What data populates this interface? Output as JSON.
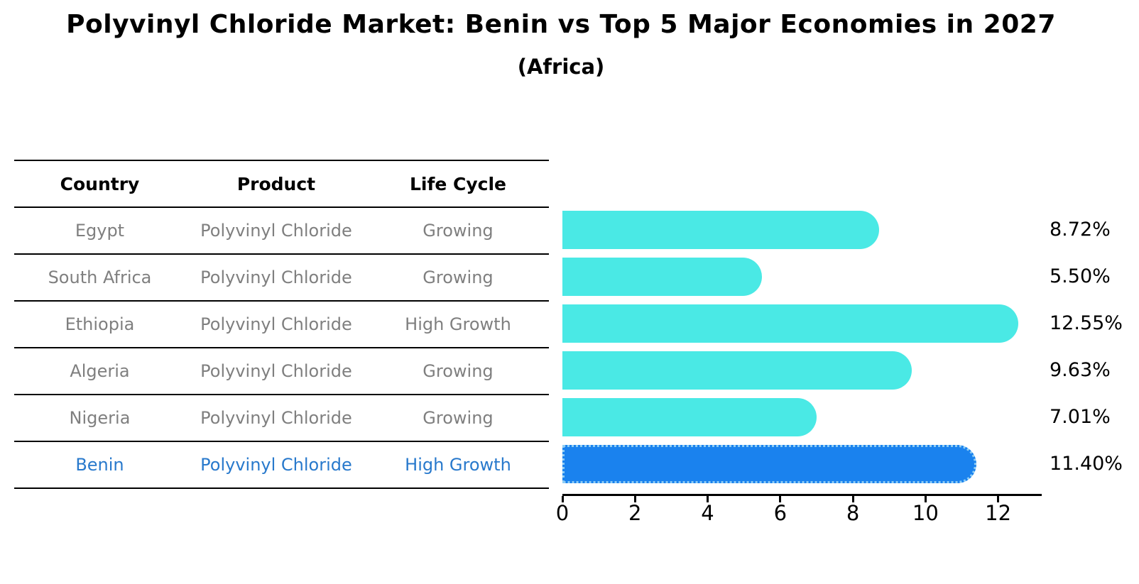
{
  "chart_data": {
    "type": "bar",
    "orientation": "horizontal",
    "title": "Polyvinyl Chloride Market: Benin vs Top 5 Major Economies in 2027",
    "subtitle": "(Africa)",
    "categories": [
      "Egypt",
      "South Africa",
      "Ethiopia",
      "Algeria",
      "Nigeria",
      "Benin"
    ],
    "values": [
      8.72,
      5.5,
      12.55,
      9.63,
      7.01,
      11.4
    ],
    "value_labels": [
      "8.72%",
      "5.50%",
      "12.55%",
      "9.63%",
      "7.01%",
      "11.40%"
    ],
    "x_ticks": [
      "0",
      "2",
      "4",
      "6",
      "8",
      "10",
      "12"
    ],
    "x_tick_values": [
      0,
      2,
      4,
      6,
      8,
      10,
      12
    ],
    "xlim": [
      0,
      13.2
    ],
    "grid": false,
    "legend": "none",
    "bar_color": "#4ae9e5",
    "highlight_index": 5,
    "highlight_color": "#1a82ee",
    "highlight_edge_color": "#8ecdf5"
  },
  "table": {
    "headers": [
      "Country",
      "Product",
      "Life Cycle"
    ],
    "rows": [
      {
        "country": "Egypt",
        "product": "Polyvinyl Chloride",
        "life_cycle": "Growing",
        "highlight": false
      },
      {
        "country": "South Africa",
        "product": "Polyvinyl Chloride",
        "life_cycle": "Growing",
        "highlight": false
      },
      {
        "country": "Ethiopia",
        "product": "Polyvinyl Chloride",
        "life_cycle": "High Growth",
        "highlight": false
      },
      {
        "country": "Algeria",
        "product": "Polyvinyl Chloride",
        "life_cycle": "Growing",
        "highlight": false
      },
      {
        "country": "Nigeria",
        "product": "Polyvinyl Chloride",
        "life_cycle": "Growing",
        "highlight": false
      },
      {
        "country": "Benin",
        "product": "Polyvinyl Chloride",
        "life_cycle": "High Growth",
        "highlight": true
      }
    ]
  },
  "colors": {
    "row_text": "#7f7f7f",
    "header_text": "#000000",
    "highlight_text": "#2879cc",
    "axis": "#000000"
  }
}
